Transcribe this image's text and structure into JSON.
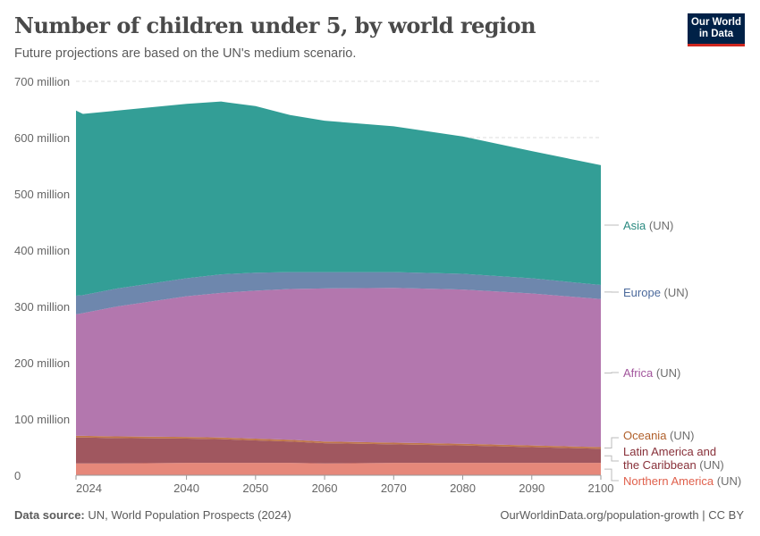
{
  "header": {
    "title": "Number of children under 5, by world region",
    "subtitle": "Future projections are based on the UN's medium scenario.",
    "logo": "Our World in Data"
  },
  "footer": {
    "source_label": "Data source:",
    "source": "UN, World Population Prospects (2024)",
    "link": "OurWorldinData.org/population-growth | CC BY"
  },
  "chart_data": {
    "type": "area",
    "stacked": true,
    "title": "Number of children under 5, by world region",
    "xlim": [
      2024,
      2100
    ],
    "ylim": [
      0,
      700
    ],
    "x_ticks": [
      "2024",
      "2040",
      "2050",
      "2060",
      "2070",
      "2080",
      "2090",
      "2100"
    ],
    "y_ticks": [
      "0",
      "100 million",
      "200 million",
      "300 million",
      "400 million",
      "500 million",
      "600 million",
      "700 million"
    ],
    "grid": "horizontal dashed",
    "legend": "right, inline labels",
    "x": [
      2024,
      2025,
      2030,
      2040,
      2045,
      2050,
      2055,
      2060,
      2070,
      2080,
      2090,
      2100
    ],
    "series": [
      {
        "name": "Northern America",
        "suffix": "(UN)",
        "color": "#e6887a",
        "label_color": "#e0604c",
        "values": [
          21,
          21,
          21,
          22,
          22,
          22,
          22,
          21,
          22,
          22,
          22,
          22
        ]
      },
      {
        "name": "Latin America and the Caribbean",
        "name_line1": "Latin America and",
        "name_line2": "the Caribbean",
        "suffix": "(UN)",
        "color": "#a0575f",
        "label_color": "#883039",
        "values": [
          46,
          46,
          45,
          43,
          42,
          40,
          38,
          36,
          33,
          31,
          28,
          25
        ]
      },
      {
        "name": "Oceania",
        "suffix": "(UN)",
        "color": "#c0774a",
        "label_color": "#b05f2a",
        "values": [
          3,
          3,
          3,
          3,
          3,
          3,
          3,
          3,
          3,
          3,
          3,
          3
        ]
      },
      {
        "name": "Africa",
        "suffix": "(UN)",
        "color": "#b377ae",
        "label_color": "#a2559c",
        "values": [
          216,
          218,
          231,
          250,
          257,
          263,
          268,
          272,
          275,
          274,
          270,
          263
        ]
      },
      {
        "name": "Europe",
        "suffix": "(UN)",
        "color": "#6e87ad",
        "label_color": "#4c6a9c",
        "values": [
          33,
          32,
          32,
          32,
          33,
          32,
          30,
          29,
          28,
          28,
          27,
          25
        ]
      },
      {
        "name": "Asia",
        "suffix": "(UN)",
        "color": "#339e96",
        "label_color": "#2a8a80",
        "values": [
          329,
          322,
          316,
          310,
          307,
          296,
          279,
          269,
          259,
          244,
          226,
          213
        ]
      }
    ]
  }
}
